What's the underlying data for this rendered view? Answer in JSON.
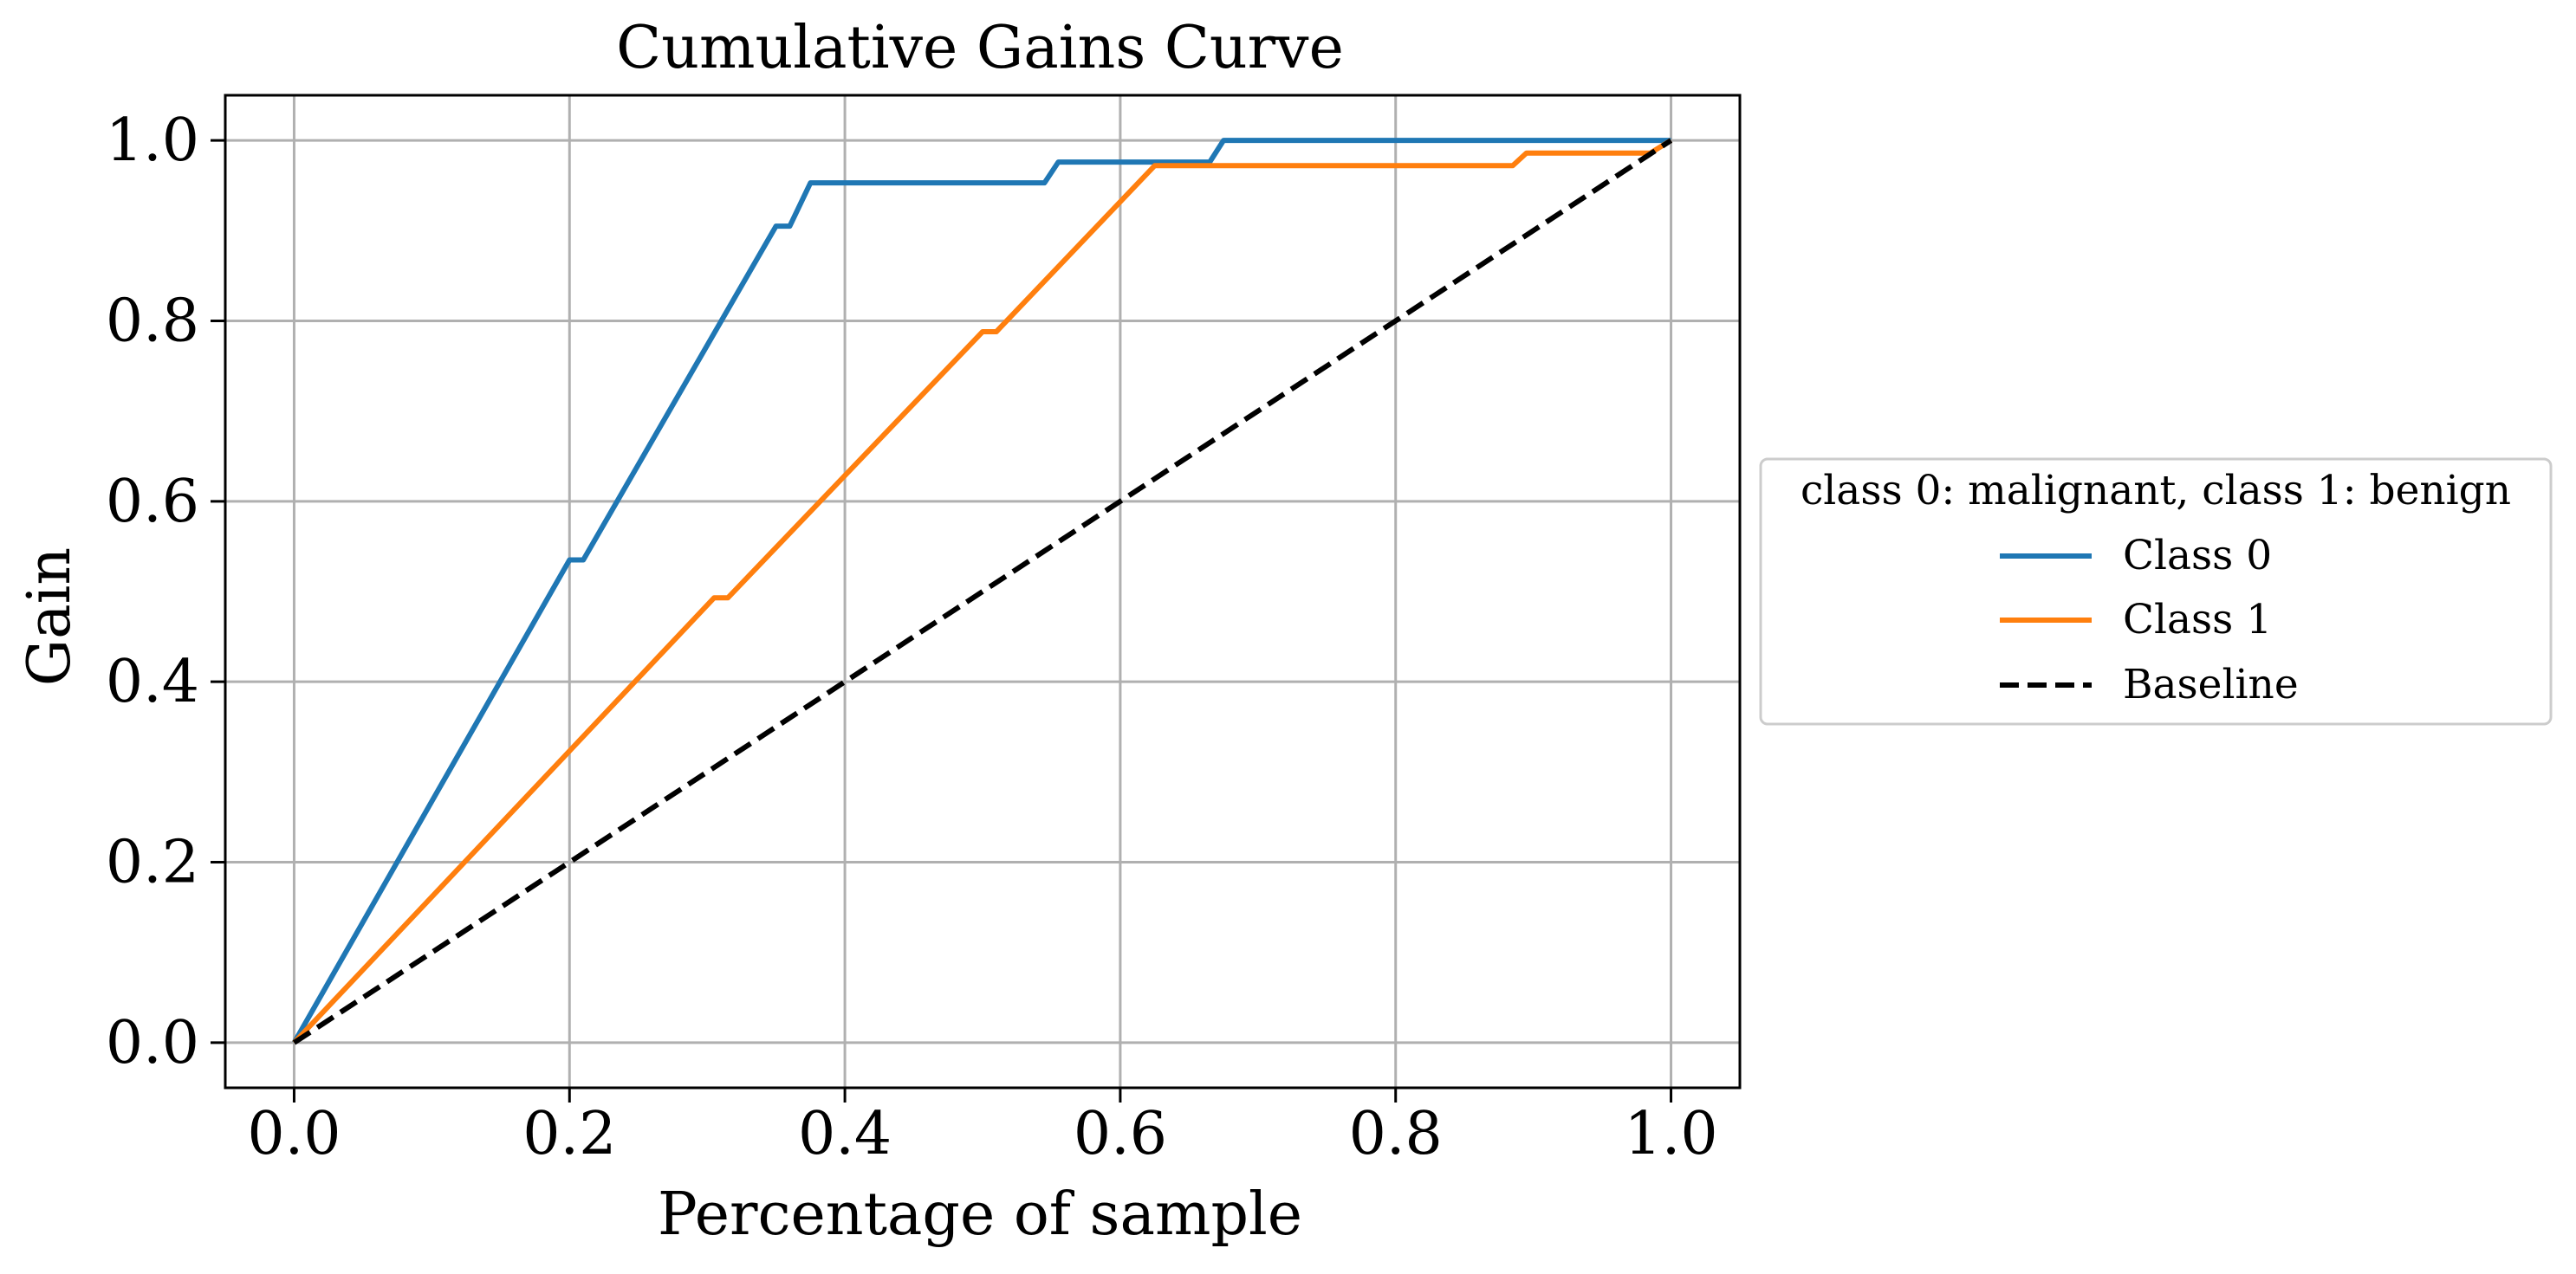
{
  "colors": {
    "class0": "#1f77b4",
    "class1": "#ff7f0e",
    "baseline": "#000000",
    "grid": "#b0b0b0",
    "legend_border": "#cccccc"
  },
  "chart_data": {
    "type": "line",
    "title": "Cumulative Gains Curve",
    "xlabel": "Percentage of sample",
    "ylabel": "Gain",
    "xlim": [
      -0.05,
      1.05
    ],
    "ylim": [
      -0.05,
      1.05
    ],
    "xticks": [
      "0.0",
      "0.2",
      "0.4",
      "0.6",
      "0.8",
      "1.0"
    ],
    "yticks": [
      "0.0",
      "0.2",
      "0.4",
      "0.6",
      "0.8",
      "1.0"
    ],
    "grid": true,
    "legend": {
      "title": "class 0: malignant, class 1: benign",
      "placement": "right-outside"
    },
    "series": [
      {
        "name": "Class 0",
        "style": "solid",
        "points": [
          [
            0.0,
            0.0
          ],
          [
            0.2,
            0.535
          ],
          [
            0.21,
            0.535
          ],
          [
            0.35,
            0.905
          ],
          [
            0.36,
            0.905
          ],
          [
            0.375,
            0.953
          ],
          [
            0.545,
            0.953
          ],
          [
            0.555,
            0.976
          ],
          [
            0.665,
            0.976
          ],
          [
            0.675,
            1.0
          ],
          [
            1.0,
            1.0
          ]
        ]
      },
      {
        "name": "Class 1",
        "style": "solid",
        "points": [
          [
            0.0,
            0.0
          ],
          [
            0.305,
            0.493
          ],
          [
            0.315,
            0.493
          ],
          [
            0.5,
            0.788
          ],
          [
            0.51,
            0.788
          ],
          [
            0.625,
            0.972
          ],
          [
            0.885,
            0.972
          ],
          [
            0.895,
            0.986
          ],
          [
            0.985,
            0.986
          ],
          [
            1.0,
            1.0
          ]
        ]
      },
      {
        "name": "Baseline",
        "style": "dashed",
        "points": [
          [
            0.0,
            0.0
          ],
          [
            1.0,
            1.0
          ]
        ]
      }
    ]
  }
}
